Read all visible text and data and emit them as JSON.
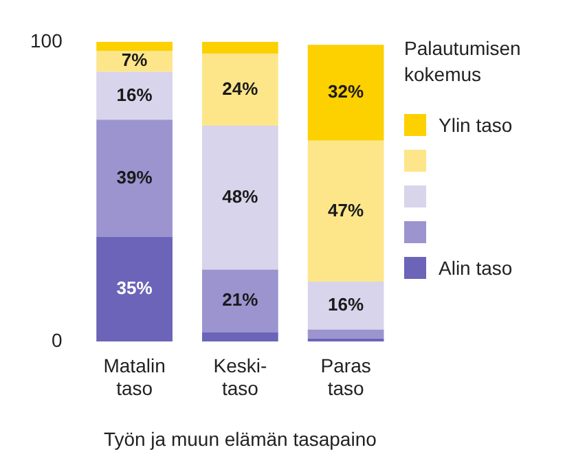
{
  "chart_data": {
    "type": "bar",
    "stacked": true,
    "xlabel": "Työn ja muun elämän tasapaino",
    "legend_title": "Palautumisen kokemus",
    "legend": "right",
    "grid": false,
    "categories": [
      "Matalin\ntaso",
      "Keski-\ntaso",
      "Paras\ntaso"
    ],
    "ylim": [
      0,
      100
    ],
    "yticks": [
      0,
      100
    ],
    "series": [
      {
        "name": "Alin taso",
        "color": "#6b64b8",
        "values": [
          35,
          3,
          1
        ],
        "value_labels": [
          "35%",
          null,
          null
        ]
      },
      {
        "color": "#9b94cf",
        "values": [
          39,
          21,
          3
        ],
        "value_labels": [
          "39%",
          "21%",
          null
        ]
      },
      {
        "color": "#d7d4eb",
        "values": [
          16,
          48,
          16
        ],
        "value_labels": [
          "16%",
          "48%",
          "16%"
        ]
      },
      {
        "color": "#fde68a",
        "values": [
          7,
          24,
          47
        ],
        "value_labels": [
          "7%",
          "24%",
          "47%"
        ]
      },
      {
        "name": "Ylin taso",
        "color": "#fdd000",
        "values": [
          3,
          4,
          32
        ],
        "value_labels": [
          null,
          null,
          "32%"
        ]
      }
    ]
  }
}
